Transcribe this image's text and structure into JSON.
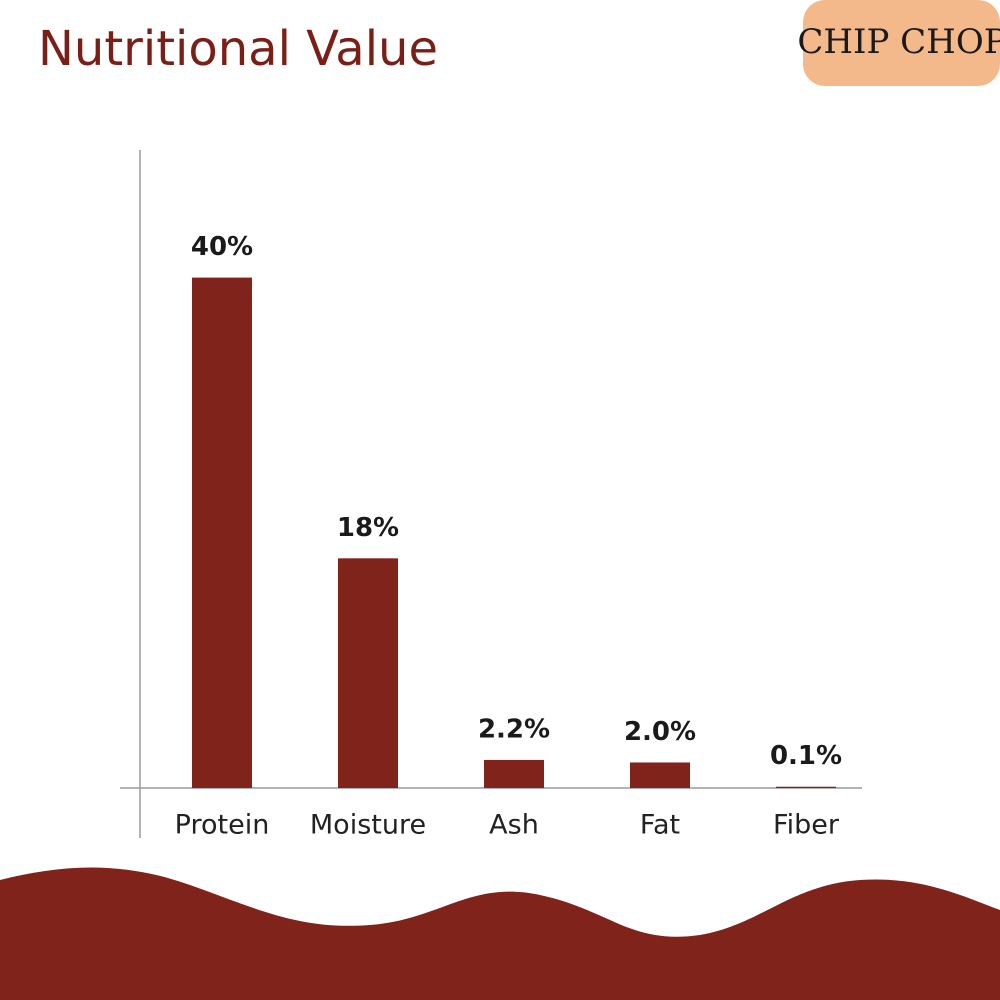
{
  "logo": "CHIP CHOP",
  "chart_data": {
    "type": "bar",
    "title": "Nutritional Value",
    "categories": [
      "Protein",
      "Moisture",
      "Ash",
      "Fat",
      "Fiber"
    ],
    "values": [
      40,
      18,
      2.2,
      2.0,
      0.1
    ],
    "value_labels": [
      "40%",
      "18%",
      "2.2%",
      "2.0%",
      "0.1%"
    ],
    "color": "#80231a",
    "ylim": [
      0,
      50
    ]
  }
}
